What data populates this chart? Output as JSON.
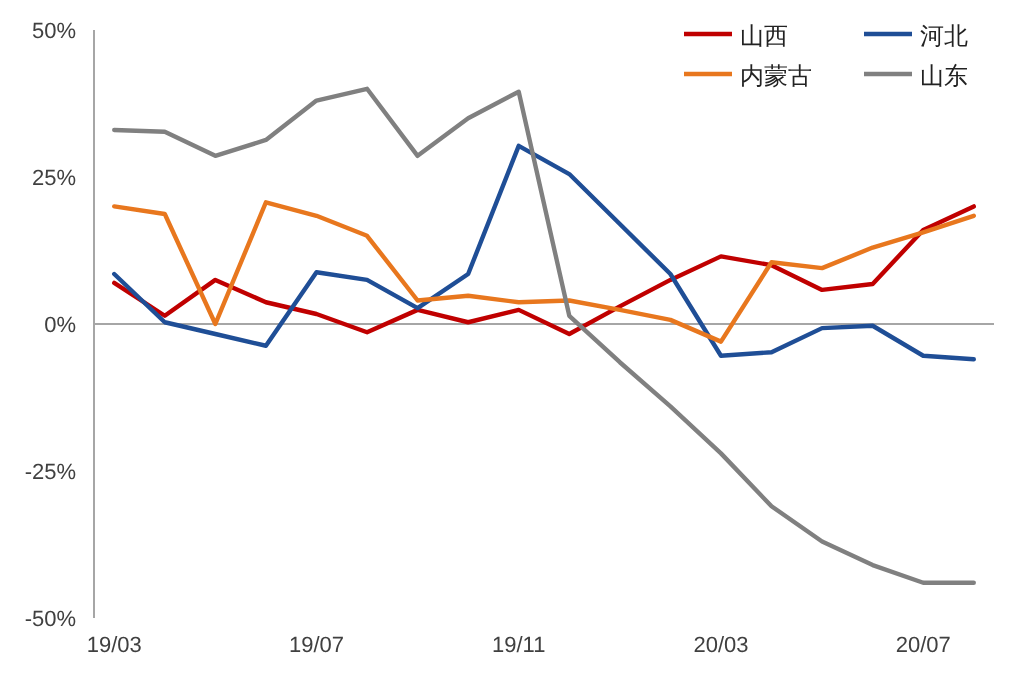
{
  "chart_data": {
    "type": "line",
    "categories": [
      "19/03",
      null,
      null,
      null,
      "19/07",
      null,
      null,
      null,
      "19/11",
      null,
      null,
      null,
      "20/03",
      null,
      null,
      null,
      "20/07",
      null
    ],
    "series": [
      {
        "name": "山西",
        "color": "#c00000",
        "values": [
          7,
          1.4,
          7.5,
          3.7,
          1.7,
          -1.4,
          2.4,
          0.3,
          2.4,
          -1.7,
          3,
          7.5,
          11.5,
          10,
          5.8,
          6.8,
          16,
          20
        ]
      },
      {
        "name": "河北",
        "color": "#1f4e96",
        "values": [
          8.5,
          0.3,
          -1.7,
          -3.7,
          8.8,
          7.5,
          2.7,
          8.5,
          30.3,
          25.5,
          17,
          8.5,
          -5.4,
          -4.8,
          -0.7,
          -0.3,
          -5.4,
          -6
        ]
      },
      {
        "name": "内蒙古",
        "color": "#e8771e",
        "values": [
          20,
          18.7,
          0,
          20.7,
          18.4,
          15,
          4,
          4.8,
          3.7,
          4,
          2.4,
          0.7,
          -3,
          10.5,
          9.5,
          13,
          15.6,
          18.4
        ]
      },
      {
        "name": "山东",
        "color": "#808080",
        "values": [
          33,
          32.7,
          28.6,
          31.3,
          38,
          40,
          28.6,
          35,
          39.5,
          1.4,
          -6.5,
          -14,
          -22,
          -31,
          -37,
          -41,
          -44,
          -44
        ]
      }
    ],
    "ylim": [
      -50,
      50
    ],
    "yticks": [
      {
        "value": -50,
        "label": "-50%"
      },
      {
        "value": -25,
        "label": "-25%"
      },
      {
        "value": 0,
        "label": "0%"
      },
      {
        "value": 25,
        "label": "25%"
      },
      {
        "value": 50,
        "label": "50%"
      }
    ],
    "ref_lines": [
      {
        "axis": "y",
        "value": 0,
        "label": null,
        "color": "#a6a6a6"
      }
    ],
    "legend": "top right",
    "grid": false,
    "marker": "none",
    "line_style": "solid"
  }
}
